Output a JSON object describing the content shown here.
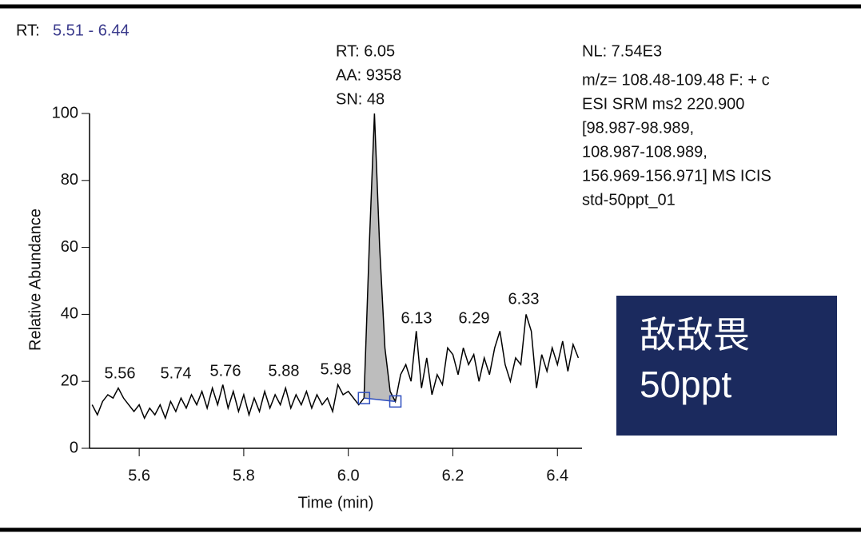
{
  "chart_data": {
    "type": "line",
    "range_prefix": "RT:",
    "range": "5.51 - 6.44",
    "peak_info": [
      "RT: 6.05",
      "AA: 9358",
      "SN: 48"
    ],
    "info": [
      "NL: 7.54E3",
      "m/z= 108.48-109.48 F: + c",
      "ESI SRM ms2 220.900",
      "[98.987-98.989,",
      "108.987-108.989,",
      "156.969-156.971]  MS  ICIS",
      "std-50ppt_01"
    ],
    "badge": [
      "敌敌畏",
      "50ppt"
    ],
    "xlabel": "Time (min)",
    "ylabel": "Relative Abundance",
    "xlim": [
      5.505,
      6.447
    ],
    "ylim": [
      0,
      100
    ],
    "xticks": [
      5.6,
      5.8,
      {
        "value": 6,
        "label": "6.0"
      },
      6.2,
      6.4
    ],
    "yticks": [
      0,
      20,
      40,
      60,
      80,
      100
    ],
    "peak_labels": [
      5.56,
      5.74,
      5.76,
      5.88,
      5.98,
      6.13,
      6.29,
      6.33
    ],
    "peak_baseline": {
      "x": [
        6.03,
        6.09
      ],
      "y": [
        15,
        14
      ]
    },
    "color": "#000000",
    "x": [
      5.51,
      5.52,
      5.53,
      5.54,
      5.55,
      5.56,
      5.57,
      5.58,
      5.59,
      5.6,
      5.61,
      5.62,
      5.63,
      5.64,
      5.65,
      5.66,
      5.67,
      5.68,
      5.69,
      5.7,
      5.71,
      5.72,
      5.73,
      5.74,
      5.75,
      5.76,
      5.77,
      5.78,
      5.79,
      5.8,
      5.81,
      5.82,
      5.83,
      5.84,
      5.85,
      5.86,
      5.87,
      5.88,
      5.89,
      5.9,
      5.91,
      5.92,
      5.93,
      5.94,
      5.95,
      5.96,
      5.97,
      5.98,
      5.99,
      6.0,
      6.01,
      6.02,
      6.03,
      6.04,
      6.05,
      6.06,
      6.07,
      6.08,
      6.09,
      6.1,
      6.11,
      6.12,
      6.13,
      6.14,
      6.15,
      6.16,
      6.17,
      6.18,
      6.19,
      6.2,
      6.21,
      6.22,
      6.23,
      6.24,
      6.25,
      6.26,
      6.27,
      6.28,
      6.29,
      6.3,
      6.31,
      6.32,
      6.33,
      6.34,
      6.35,
      6.36,
      6.37,
      6.38,
      6.39,
      6.4,
      6.41,
      6.42,
      6.43,
      6.44
    ],
    "values": [
      13,
      10,
      14,
      16,
      15,
      18,
      15,
      13,
      11,
      13,
      9,
      12,
      10,
      13,
      9,
      14,
      11,
      15,
      12,
      16,
      13,
      17,
      12,
      18,
      13,
      19,
      12,
      17,
      11,
      16,
      10,
      15,
      11,
      17,
      12,
      16,
      13,
      18,
      12,
      16,
      13,
      17,
      12,
      16,
      13,
      15,
      11,
      19,
      16,
      17,
      15,
      13,
      15,
      60,
      100,
      60,
      30,
      17,
      14,
      22,
      25,
      20,
      35,
      18,
      27,
      16,
      22,
      19,
      30,
      28,
      22,
      30,
      25,
      28,
      20,
      27,
      22,
      30,
      35,
      25,
      20,
      27,
      25,
      40,
      35,
      18,
      28,
      23,
      30,
      25,
      32,
      23,
      31,
      27
    ]
  }
}
